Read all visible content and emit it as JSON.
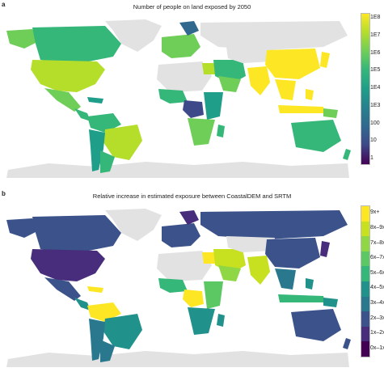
{
  "panel_a": {
    "letter": "a",
    "title": "Number of people on land exposed by 2050",
    "legend_ticks": [
      "1E8",
      "1E7",
      "1E6",
      "1E5",
      "1E4",
      "1E3",
      "100",
      "10",
      "1"
    ],
    "legend_colors": [
      "#fde725",
      "#b5de2b",
      "#6ece58",
      "#35b779",
      "#1f9e89",
      "#26828e",
      "#31688e",
      "#3e4989",
      "#482878",
      "#440154"
    ]
  },
  "panel_b": {
    "letter": "b",
    "title": "Relative increase in estimated exposure between CoastalDEM and SRTM",
    "legend_ticks": [
      "9x+",
      "8x–9x",
      "7x–8x",
      "6x–7x",
      "5x–6x",
      "4x–5x",
      "3x–4x",
      "2x–3x",
      "1x–2x",
      "0x–1x"
    ],
    "legend_colors": [
      "#fde725",
      "#c7e020",
      "#8fd744",
      "#5cc863",
      "#35b779",
      "#21918c",
      "#2a788e",
      "#3b528b",
      "#472d7b",
      "#440154"
    ]
  },
  "map_colors": {
    "no_data": "#e2e2e2",
    "ocean": "#ffffff"
  }
}
